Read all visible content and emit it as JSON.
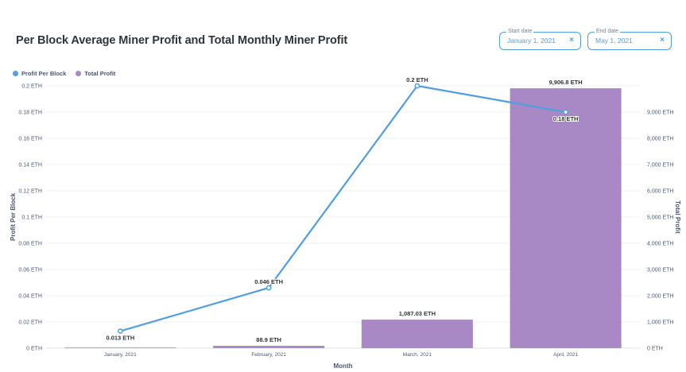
{
  "title": "Per Block Average Miner Profit and Total Monthly Miner Profit",
  "filters": {
    "start_date": {
      "label": "Start date",
      "value": "January 1, 2021",
      "clear_icon": "×"
    },
    "end_date": {
      "label": "End date",
      "value": "May 1, 2021",
      "clear_icon": "×"
    }
  },
  "colors": {
    "line": "#509ee3",
    "bar": "#a989c5",
    "grid": "#eceff1",
    "axis_text": "#4c5773"
  },
  "chart_data": {
    "type": "bar",
    "categories": [
      "January, 2021",
      "February, 2021",
      "March, 2021",
      "April, 2021"
    ],
    "series": [
      {
        "name": "Profit Per Block",
        "kind": "line",
        "axis": "left",
        "values": [
          0.013,
          0.046,
          0.2,
          0.18
        ],
        "labels": [
          "0.013 ETH",
          "0.046 ETH",
          "0.2 ETH",
          "0.18 ETH"
        ]
      },
      {
        "name": "Total Profit",
        "kind": "bar",
        "axis": "right",
        "values": [
          12,
          88.9,
          1087.03,
          9906.8
        ],
        "labels": [
          "",
          "88.9 ETH",
          "1,087.03 ETH",
          "9,906.8 ETH"
        ]
      }
    ],
    "xlabel": "Month",
    "ylabel": "Profit Per Block",
    "ylabel_right": "Total Profit",
    "ylim": [
      0,
      0.2
    ],
    "ylim_right": [
      0,
      10000
    ],
    "yticks": [
      0,
      0.02,
      0.04,
      0.06,
      0.08,
      0.1,
      0.12,
      0.14,
      0.16,
      0.18,
      0.2
    ],
    "ytick_labels": [
      "0 ETH",
      "0.02 ETH",
      "0.04 ETH",
      "0.06 ETH",
      "0.08 ETH",
      "0.1 ETH",
      "0.12 ETH",
      "0.14 ETH",
      "0.16 ETH",
      "0.18 ETH",
      "0.2 ETH"
    ],
    "yticks_right": [
      0,
      1000,
      2000,
      3000,
      4000,
      5000,
      6000,
      7000,
      8000,
      9000
    ],
    "ytick_labels_right": [
      "0 ETH",
      "1,000 ETH",
      "2,000 ETH",
      "3,000 ETH",
      "4,000 ETH",
      "5,000 ETH",
      "6,000 ETH",
      "7,000 ETH",
      "8,000 ETH",
      "9,000 ETH"
    ],
    "grid": true,
    "legend": "top-left"
  }
}
